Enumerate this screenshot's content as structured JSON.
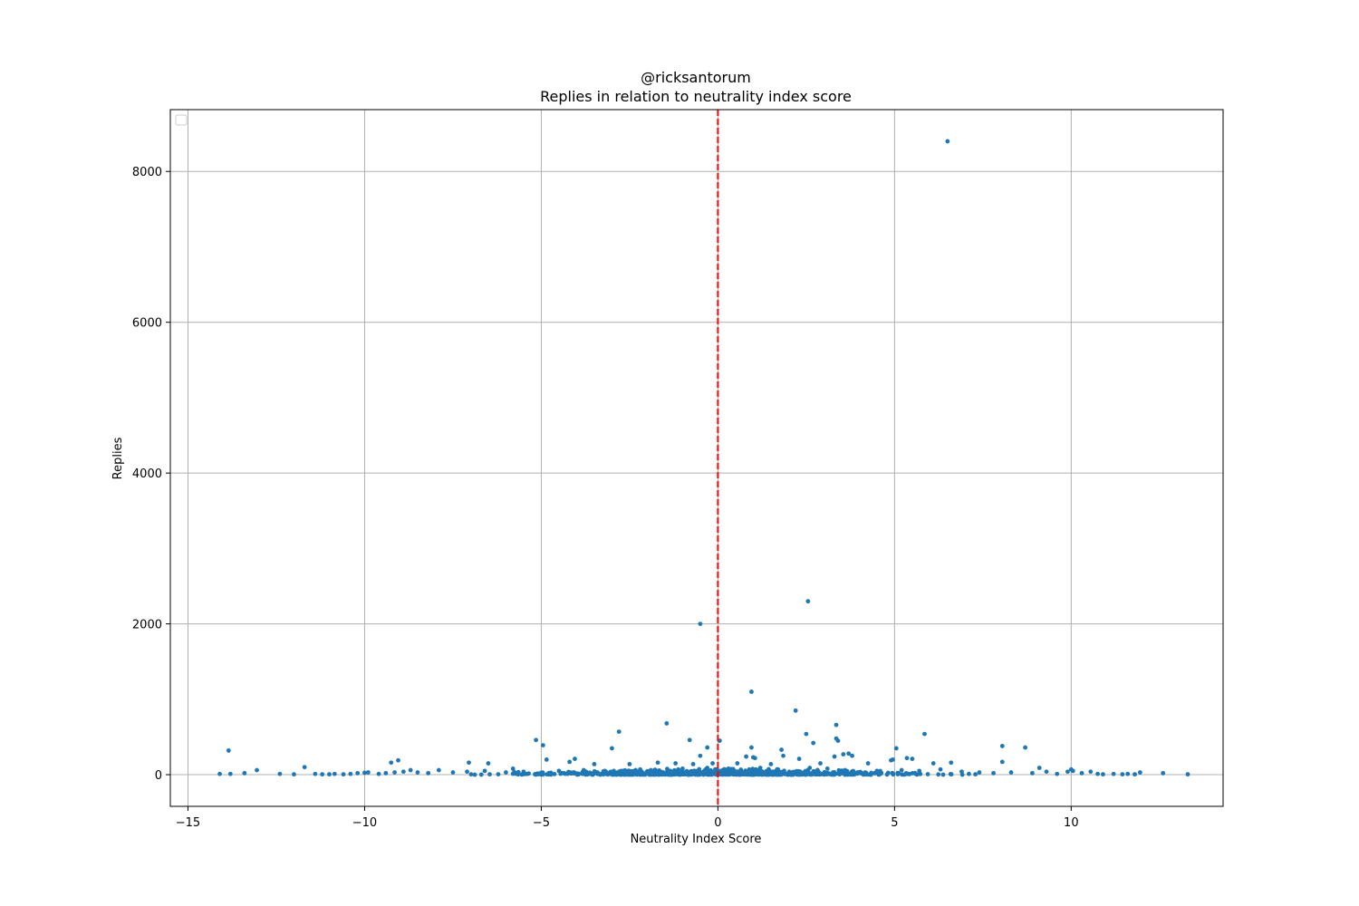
{
  "chart_data": {
    "type": "scatter",
    "title": "@ricksantorum",
    "subtitle": "Replies in relation to neutrality index score",
    "xlabel": "Neutrality Index Score",
    "ylabel": "Replies",
    "xlim": [
      -15.5,
      14.3
    ],
    "ylim": [
      -420,
      8820
    ],
    "xticks": [
      -15,
      -10,
      -5,
      0,
      5,
      10
    ],
    "xtick_labels": [
      "−15",
      "−10",
      "−5",
      "0",
      "5",
      "10"
    ],
    "yticks": [
      0,
      2000,
      4000,
      6000,
      8000
    ],
    "ytick_labels": [
      "0",
      "2000",
      "4000",
      "6000",
      "8000"
    ],
    "grid": true,
    "legend": {
      "placement": "upper-left",
      "entries": []
    },
    "reference_line": {
      "axis": "x",
      "value": 0,
      "color": "#ff0000",
      "style": "dashed"
    },
    "colors": {
      "points": "#1f77b4",
      "grid": "#b0b0b0",
      "reference_line": "#ff0000"
    },
    "series": [
      {
        "points": [
          [
            6.5,
            8400
          ],
          [
            2.55,
            2300
          ],
          [
            -0.5,
            2000
          ],
          [
            0.95,
            1100
          ],
          [
            2.2,
            850
          ],
          [
            -1.45,
            680
          ],
          [
            3.35,
            660
          ],
          [
            -2.8,
            570
          ],
          [
            5.85,
            540
          ],
          [
            2.5,
            540
          ],
          [
            -5.15,
            460
          ],
          [
            -0.8,
            460
          ],
          [
            3.35,
            480
          ],
          [
            3.4,
            450
          ],
          [
            0.05,
            450
          ],
          [
            2.7,
            420
          ],
          [
            -4.95,
            390
          ],
          [
            8.05,
            380
          ],
          [
            -0.3,
            360
          ],
          [
            0.95,
            360
          ],
          [
            -3.0,
            350
          ],
          [
            8.7,
            360
          ],
          [
            5.05,
            350
          ],
          [
            1.8,
            330
          ],
          [
            -13.85,
            320
          ],
          [
            3.7,
            280
          ],
          [
            3.55,
            270
          ],
          [
            3.8,
            250
          ],
          [
            3.3,
            240
          ],
          [
            -0.5,
            250
          ],
          [
            0.8,
            240
          ],
          [
            1.0,
            230
          ],
          [
            1.05,
            220
          ],
          [
            5.35,
            220
          ],
          [
            5.5,
            210
          ],
          [
            2.3,
            210
          ],
          [
            1.85,
            250
          ],
          [
            4.95,
            200
          ],
          [
            4.9,
            190
          ],
          [
            -4.05,
            210
          ],
          [
            -4.85,
            200
          ],
          [
            -9.05,
            190
          ],
          [
            -9.25,
            160
          ],
          [
            -4.2,
            170
          ],
          [
            -7.05,
            160
          ],
          [
            -6.5,
            150
          ],
          [
            -3.5,
            140
          ],
          [
            -2.5,
            140
          ],
          [
            -1.7,
            160
          ],
          [
            -1.2,
            150
          ],
          [
            -0.7,
            140
          ],
          [
            -0.15,
            150
          ],
          [
            0.55,
            150
          ],
          [
            1.5,
            140
          ],
          [
            2.9,
            150
          ],
          [
            4.25,
            150
          ],
          [
            6.1,
            150
          ],
          [
            6.6,
            160
          ],
          [
            8.05,
            170
          ],
          [
            9.1,
            90
          ],
          [
            -11.7,
            100
          ],
          [
            -13.05,
            60
          ],
          [
            -8.7,
            60
          ],
          [
            -7.9,
            60
          ],
          [
            -5.8,
            80
          ],
          [
            -14.1,
            10
          ],
          [
            -13.8,
            10
          ],
          [
            -13.4,
            20
          ],
          [
            -12.4,
            10
          ],
          [
            -12.0,
            5
          ],
          [
            -11.4,
            10
          ],
          [
            -11.2,
            5
          ],
          [
            -11.0,
            5
          ],
          [
            -10.85,
            10
          ],
          [
            -10.6,
            5
          ],
          [
            -10.4,
            10
          ],
          [
            -10.2,
            20
          ],
          [
            -10.0,
            25
          ],
          [
            -9.9,
            30
          ],
          [
            -9.6,
            10
          ],
          [
            -9.4,
            20
          ],
          [
            -9.15,
            30
          ],
          [
            -8.9,
            40
          ],
          [
            -8.5,
            30
          ],
          [
            -8.2,
            20
          ],
          [
            -7.5,
            30
          ],
          [
            -7.1,
            40
          ],
          [
            -6.6,
            50
          ],
          [
            -6.0,
            30
          ],
          [
            -5.5,
            40
          ],
          [
            -4.5,
            50
          ],
          [
            -3.8,
            60
          ],
          [
            -3.2,
            50
          ],
          [
            -2.2,
            70
          ],
          [
            -1.9,
            60
          ],
          [
            -1.0,
            80
          ],
          [
            -0.3,
            90
          ],
          [
            0.3,
            80
          ],
          [
            1.2,
            90
          ],
          [
            1.7,
            70
          ],
          [
            2.6,
            90
          ],
          [
            3.1,
            80
          ],
          [
            3.6,
            60
          ],
          [
            4.5,
            50
          ],
          [
            5.2,
            60
          ],
          [
            5.7,
            50
          ],
          [
            6.3,
            70
          ],
          [
            6.9,
            40
          ],
          [
            7.4,
            30
          ],
          [
            7.8,
            20
          ],
          [
            8.3,
            30
          ],
          [
            8.9,
            20
          ],
          [
            9.3,
            40
          ],
          [
            9.6,
            10
          ],
          [
            9.9,
            40
          ],
          [
            10.0,
            70
          ],
          [
            10.05,
            50
          ],
          [
            10.3,
            20
          ],
          [
            10.55,
            40
          ],
          [
            10.75,
            10
          ],
          [
            10.9,
            5
          ],
          [
            11.2,
            10
          ],
          [
            11.45,
            5
          ],
          [
            11.6,
            10
          ],
          [
            11.8,
            5
          ],
          [
            11.95,
            30
          ],
          [
            12.6,
            20
          ],
          [
            13.3,
            5
          ]
        ]
      }
    ]
  }
}
